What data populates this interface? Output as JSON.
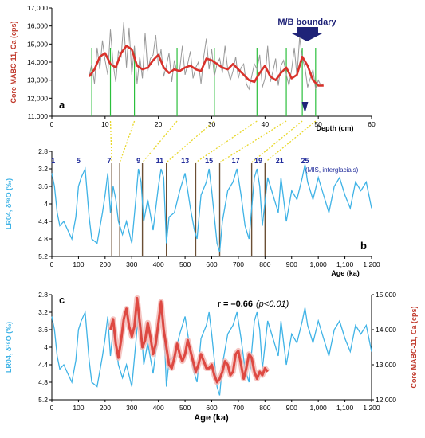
{
  "colors": {
    "ca_raw": "#999999",
    "ca_smooth": "#d9322b",
    "lr04": "#3fb3e6",
    "tie_green": "#2bbf3c",
    "tie_yellow": "#e8d72a",
    "tie_age": "#6b4f34",
    "mis_label": "#1f2a9a",
    "mb_arrow": "#1f2378",
    "axis_red": "#c0392b",
    "axis_blue": "#3fb3e6",
    "overlay_band": "#f3b6b3"
  },
  "chart_data": [
    {
      "id": "a",
      "type": "line",
      "panel_label": "a",
      "xlabel": "Depth (cm)",
      "ylabel": "Core MABC-11, Ca (cps)",
      "xlim": [
        0,
        60
      ],
      "ylim": [
        11000,
        17000
      ],
      "x_ticks": [
        "0",
        "10",
        "20",
        "30",
        "40",
        "50",
        "60"
      ],
      "y_ticks": [
        "11,000",
        "12,000",
        "13,000",
        "14,000",
        "15,000",
        "16,000",
        "17,000"
      ],
      "annotation": "M/B boundary",
      "mb_depth": 47.5,
      "tie_depths": [
        7.5,
        11,
        15.5,
        23.5,
        30.5,
        38.5,
        44,
        47,
        49.5
      ],
      "series": [
        {
          "role": "raw",
          "x": [
            7,
            7.5,
            8,
            8.5,
            9,
            9.5,
            10,
            10.5,
            11,
            11.5,
            12,
            12.5,
            13,
            13.5,
            14,
            14.5,
            15,
            15.5,
            16,
            16.5,
            17,
            17.5,
            18,
            18.5,
            19,
            19.5,
            20,
            20.5,
            21,
            21.5,
            22,
            22.5,
            23,
            23.5,
            24,
            24.5,
            25,
            25.5,
            26,
            26.5,
            27,
            27.5,
            28,
            28.5,
            29,
            29.5,
            30,
            30.5,
            31,
            31.5,
            32,
            32.5,
            33,
            33.5,
            34,
            34.5,
            35,
            35.5,
            36,
            36.5,
            37,
            37.5,
            38,
            38.5,
            39,
            39.5,
            40,
            40.5,
            41,
            41.5,
            42,
            42.5,
            43,
            43.5,
            44,
            44.5,
            45,
            45.5,
            46,
            46.5,
            47,
            47.5,
            48,
            48.5,
            49,
            49.5,
            50,
            50.5,
            51
          ],
          "values": [
            13200,
            13900,
            12800,
            14800,
            13600,
            15200,
            14100,
            13300,
            15800,
            13900,
            12900,
            14600,
            14300,
            16200,
            13700,
            15900,
            13300,
            14900,
            12800,
            14300,
            13100,
            15600,
            13500,
            14200,
            14400,
            15500,
            13800,
            14700,
            13200,
            13800,
            14500,
            12900,
            14100,
            13400,
            13600,
            14900,
            13300,
            13900,
            14600,
            13100,
            13700,
            14000,
            12800,
            14300,
            15300,
            13600,
            14700,
            13200,
            13900,
            14200,
            13400,
            14900,
            13600,
            13000,
            13500,
            14300,
            13100,
            13700,
            13900,
            12800,
            12500,
            13200,
            13900,
            13600,
            14400,
            12600,
            13100,
            14900,
            12900,
            13500,
            14200,
            12700,
            13800,
            14100,
            13300,
            12700,
            13600,
            14800,
            13200,
            15400,
            14200,
            13700,
            12600,
            13100,
            13600,
            12500,
            13000,
            12700,
            12800
          ]
        },
        {
          "role": "smoothed",
          "x": [
            7,
            8,
            9,
            10,
            11,
            12,
            13,
            14,
            15,
            16,
            17,
            18,
            19,
            20,
            21,
            22,
            23,
            24,
            25,
            26,
            27,
            28,
            29,
            30,
            31,
            32,
            33,
            34,
            35,
            36,
            37,
            38,
            39,
            40,
            41,
            42,
            43,
            44,
            45,
            46,
            47,
            48,
            49,
            50,
            51
          ],
          "values": [
            13200,
            13600,
            14300,
            14500,
            13900,
            13700,
            14500,
            14900,
            14700,
            13800,
            13600,
            13700,
            14100,
            14400,
            13700,
            13400,
            13600,
            13500,
            13700,
            13800,
            13600,
            13500,
            14200,
            14100,
            13900,
            13700,
            13600,
            13900,
            13600,
            13300,
            13000,
            12900,
            13400,
            13800,
            13200,
            13000,
            13400,
            13700,
            13100,
            13300,
            14300,
            13800,
            13000,
            12700,
            12700
          ]
        }
      ]
    },
    {
      "id": "b",
      "type": "line",
      "panel_label": "b",
      "xlabel": "Age (ka)",
      "ylabel": "LR04, δ¹⁸O (‰)",
      "xlim": [
        0,
        1200
      ],
      "ylim_inverted": [
        5.2,
        2.8
      ],
      "x_ticks": [
        "0",
        "100",
        "200",
        "300",
        "400",
        "500",
        "600",
        "700",
        "800",
        "900",
        "1,000",
        "1,100",
        "1,200"
      ],
      "y_ticks": [
        "2.8",
        "3.2",
        "3.6",
        "4",
        "4.4",
        "4.8",
        "5.2"
      ],
      "mis_labels": [
        {
          "label": "1",
          "age": 5
        },
        {
          "label": "5",
          "age": 100
        },
        {
          "label": "7",
          "age": 215
        },
        {
          "label": "9",
          "age": 325
        },
        {
          "label": "11",
          "age": 405
        },
        {
          "label": "13",
          "age": 500
        },
        {
          "label": "15",
          "age": 590
        },
        {
          "label": "17",
          "age": 690
        },
        {
          "label": "19",
          "age": 775
        },
        {
          "label": "21",
          "age": 855
        },
        {
          "label": "25",
          "age": 950
        }
      ],
      "mis_note": "(MIS, interglacials)",
      "tie_ages": [
        225,
        255,
        340,
        430,
        540,
        630,
        750,
        800
      ],
      "series": [
        {
          "name": "LR04",
          "x": [
            0,
            10,
            20,
            30,
            45,
            60,
            75,
            90,
            100,
            110,
            125,
            140,
            150,
            170,
            190,
            200,
            210,
            220,
            230,
            240,
            250,
            265,
            280,
            300,
            315,
            325,
            335,
            345,
            360,
            380,
            400,
            410,
            420,
            430,
            440,
            460,
            480,
            500,
            520,
            535,
            545,
            560,
            580,
            590,
            600,
            620,
            630,
            640,
            660,
            680,
            695,
            710,
            725,
            740,
            760,
            770,
            780,
            790,
            810,
            830,
            850,
            860,
            880,
            900,
            920,
            940,
            950,
            960,
            980,
            1000,
            1020,
            1040,
            1060,
            1080,
            1100,
            1120,
            1140,
            1160,
            1180,
            1200
          ],
          "values": [
            3.3,
            3.6,
            4.2,
            4.5,
            4.4,
            4.6,
            4.8,
            4.3,
            3.6,
            3.4,
            3.2,
            4.3,
            4.8,
            4.9,
            4.2,
            3.8,
            3.3,
            4.2,
            3.6,
            3.9,
            4.4,
            4.7,
            4.4,
            4.9,
            3.9,
            3.2,
            3.5,
            4.4,
            3.9,
            4.6,
            3.6,
            3.2,
            3.4,
            4.9,
            4.3,
            4.2,
            3.7,
            3.3,
            4.1,
            4.6,
            4.8,
            3.8,
            3.5,
            3.2,
            3.7,
            4.9,
            5.1,
            4.4,
            3.7,
            3.5,
            3.2,
            3.8,
            4.5,
            4.8,
            3.4,
            3.2,
            3.6,
            4.5,
            3.4,
            3.8,
            4.2,
            3.4,
            4.4,
            3.7,
            3.9,
            3.4,
            3.1,
            3.5,
            3.9,
            3.4,
            3.8,
            4.2,
            3.6,
            3.4,
            3.8,
            4.1,
            3.5,
            3.7,
            3.5,
            4.1
          ]
        }
      ]
    },
    {
      "id": "c",
      "type": "line",
      "panel_label": "c",
      "xlabel": "Age (ka)",
      "ylabel": "LR04, δ¹⁸O (‰)",
      "ylabel_right": "Core MABC-11, Ca (cps)",
      "annotation_r": "r = –0.66",
      "annotation_p": "(p<0.01)",
      "xlim": [
        0,
        1200
      ],
      "ylim_inverted": [
        5.2,
        2.8
      ],
      "ylim_right": [
        12000,
        15000
      ],
      "x_ticks": [
        "0",
        "100",
        "200",
        "300",
        "400",
        "500",
        "600",
        "700",
        "800",
        "900",
        "1,000",
        "1,100",
        "1,200"
      ],
      "y_ticks": [
        "2.8",
        "3.2",
        "3.6",
        "4",
        "4.4",
        "4.8",
        "5.2"
      ],
      "y_ticks_right": [
        "12,000",
        "13,000",
        "14,000",
        "15,000"
      ],
      "series": [
        {
          "name": "Core MABC-11, Ca",
          "axis": "right",
          "x": [
            220,
            230,
            240,
            250,
            260,
            270,
            280,
            290,
            300,
            310,
            320,
            330,
            340,
            350,
            360,
            370,
            380,
            390,
            400,
            410,
            420,
            430,
            440,
            450,
            460,
            470,
            480,
            490,
            500,
            510,
            520,
            530,
            540,
            550,
            560,
            570,
            580,
            590,
            600,
            610,
            620,
            630,
            640,
            650,
            660,
            670,
            680,
            690,
            700,
            710,
            720,
            730,
            740,
            750,
            760,
            770,
            780,
            790,
            800,
            810
          ],
          "values": [
            14000,
            14300,
            13600,
            13200,
            13700,
            14300,
            14600,
            14100,
            13800,
            14100,
            14900,
            14200,
            13500,
            13700,
            14200,
            13800,
            13300,
            13600,
            14200,
            14800,
            14000,
            13500,
            13000,
            12900,
            13200,
            13600,
            13300,
            13100,
            13300,
            13700,
            13400,
            13100,
            12800,
            13000,
            13300,
            13100,
            12900,
            12900,
            13000,
            12700,
            12500,
            12600,
            12800,
            13100,
            13000,
            12700,
            12800,
            13300,
            13400,
            13000,
            12600,
            12900,
            13300,
            13200,
            12800,
            12600,
            12800,
            12700,
            12900,
            12800
          ]
        }
      ]
    }
  ]
}
